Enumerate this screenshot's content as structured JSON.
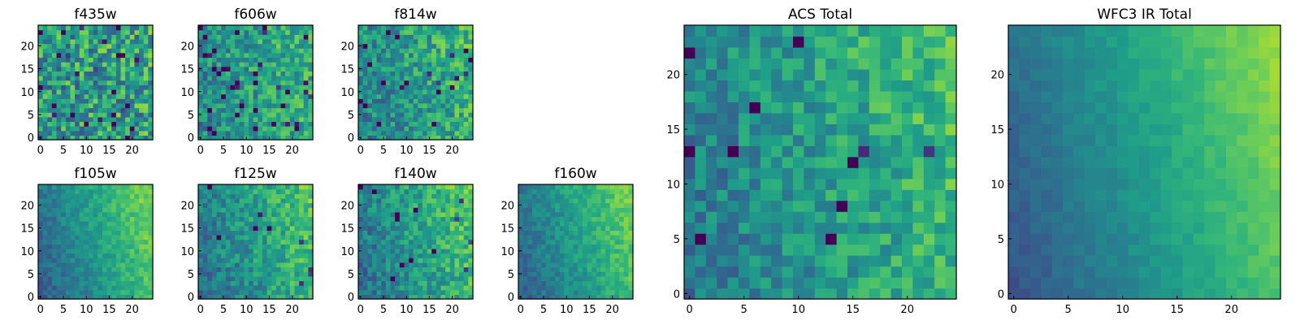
{
  "chart_data": [
    {
      "type": "heatmap",
      "title": "f435w",
      "xticks": [
        "0",
        "5",
        "10",
        "15",
        "20"
      ],
      "yticks": [
        "0",
        "5",
        "10",
        "15",
        "20"
      ],
      "xlim": [
        0,
        24
      ],
      "ylim": [
        0,
        24
      ],
      "colormap": "viridis",
      "seed": 3,
      "gradient": 0.1,
      "noise": 0.55,
      "dark": 0.05
    },
    {
      "type": "heatmap",
      "title": "f606w",
      "xticks": [
        "0",
        "5",
        "10",
        "15",
        "20"
      ],
      "yticks": [
        "0",
        "5",
        "10",
        "15",
        "20"
      ],
      "xlim": [
        0,
        24
      ],
      "ylim": [
        0,
        24
      ],
      "colormap": "viridis",
      "seed": 7,
      "gradient": 0.3,
      "noise": 0.4,
      "dark": 0.05
    },
    {
      "type": "heatmap",
      "title": "f814w",
      "xticks": [
        "0",
        "5",
        "10",
        "15",
        "20"
      ],
      "yticks": [
        "0",
        "5",
        "10",
        "15",
        "20"
      ],
      "xlim": [
        0,
        24
      ],
      "ylim": [
        0,
        24
      ],
      "colormap": "viridis",
      "seed": 11,
      "gradient": 0.35,
      "noise": 0.4,
      "dark": 0.04
    },
    {
      "type": "heatmap",
      "title": "f105w",
      "xticks": [
        "0",
        "5",
        "10",
        "15",
        "20"
      ],
      "yticks": [
        "0",
        "5",
        "10",
        "15",
        "20"
      ],
      "xlim": [
        0,
        24
      ],
      "ylim": [
        0,
        24
      ],
      "colormap": "viridis",
      "seed": 13,
      "gradient": 0.75,
      "noise": 0.18,
      "dark": 0.0
    },
    {
      "type": "heatmap",
      "title": "f125w",
      "xticks": [
        "0",
        "5",
        "10",
        "15",
        "20"
      ],
      "yticks": [
        "0",
        "5",
        "10",
        "15",
        "20"
      ],
      "xlim": [
        0,
        24
      ],
      "ylim": [
        0,
        24
      ],
      "colormap": "viridis",
      "seed": 17,
      "gradient": 0.55,
      "noise": 0.3,
      "dark": 0.02
    },
    {
      "type": "heatmap",
      "title": "f140w",
      "xticks": [
        "0",
        "5",
        "10",
        "15",
        "20"
      ],
      "yticks": [
        "0",
        "5",
        "10",
        "15",
        "20"
      ],
      "xlim": [
        0,
        24
      ],
      "ylim": [
        0,
        24
      ],
      "colormap": "viridis",
      "seed": 19,
      "gradient": 0.55,
      "noise": 0.32,
      "dark": 0.02
    },
    {
      "type": "heatmap",
      "title": "f160w",
      "xticks": [
        "0",
        "5",
        "10",
        "15",
        "20"
      ],
      "yticks": [
        "0",
        "5",
        "10",
        "15",
        "20"
      ],
      "xlim": [
        0,
        24
      ],
      "ylim": [
        0,
        24
      ],
      "colormap": "viridis",
      "seed": 23,
      "gradient": 0.7,
      "noise": 0.18,
      "dark": 0.0
    },
    {
      "type": "heatmap",
      "title": "ACS Total",
      "xticks": [
        "0",
        "5",
        "10",
        "15",
        "20"
      ],
      "yticks": [
        "0",
        "5",
        "10",
        "15",
        "20"
      ],
      "xlim": [
        0,
        24
      ],
      "ylim": [
        0,
        24
      ],
      "colormap": "viridis",
      "seed": 29,
      "gradient": 0.45,
      "noise": 0.3,
      "dark": 0.02
    },
    {
      "type": "heatmap",
      "title": "WFC3 IR Total",
      "xticks": [
        "0",
        "5",
        "10",
        "15",
        "20"
      ],
      "yticks": [
        "0",
        "5",
        "10",
        "15",
        "20"
      ],
      "xlim": [
        0,
        24
      ],
      "ylim": [
        0,
        24
      ],
      "colormap": "viridis",
      "seed": 31,
      "gradient": 0.85,
      "noise": 0.08,
      "dark": 0.0
    }
  ]
}
